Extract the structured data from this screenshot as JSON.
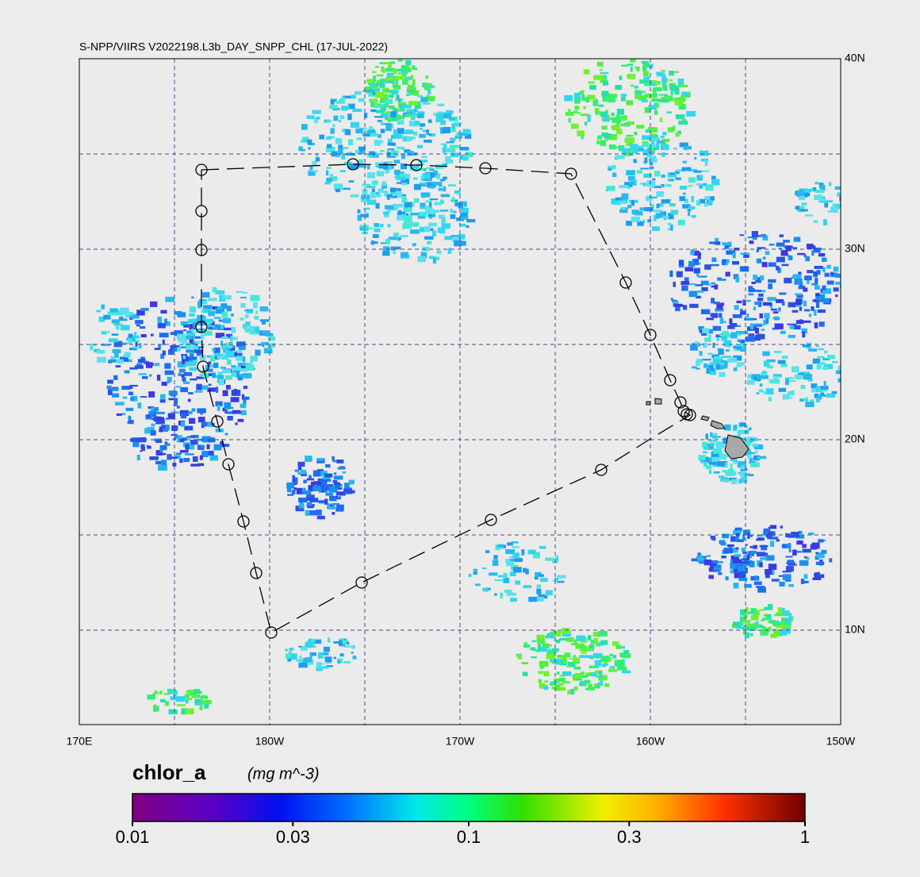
{
  "title": "S-NPP/VIIRS V2022198.L3b_DAY_SNPP_CHL (17-JUL-2022)",
  "map": {
    "lon_labels": [
      "170E",
      "180W",
      "170W",
      "160W",
      "150W"
    ],
    "lat_labels": [
      "40N",
      "30N",
      "20N",
      "10N"
    ]
  },
  "colorbar": {
    "label": "chlor_a",
    "units": "(mg m^-3)",
    "scale": "log",
    "range": [
      0.01,
      1
    ],
    "ticks": [
      0.01,
      0.03,
      0.1,
      0.3,
      1
    ]
  }
}
